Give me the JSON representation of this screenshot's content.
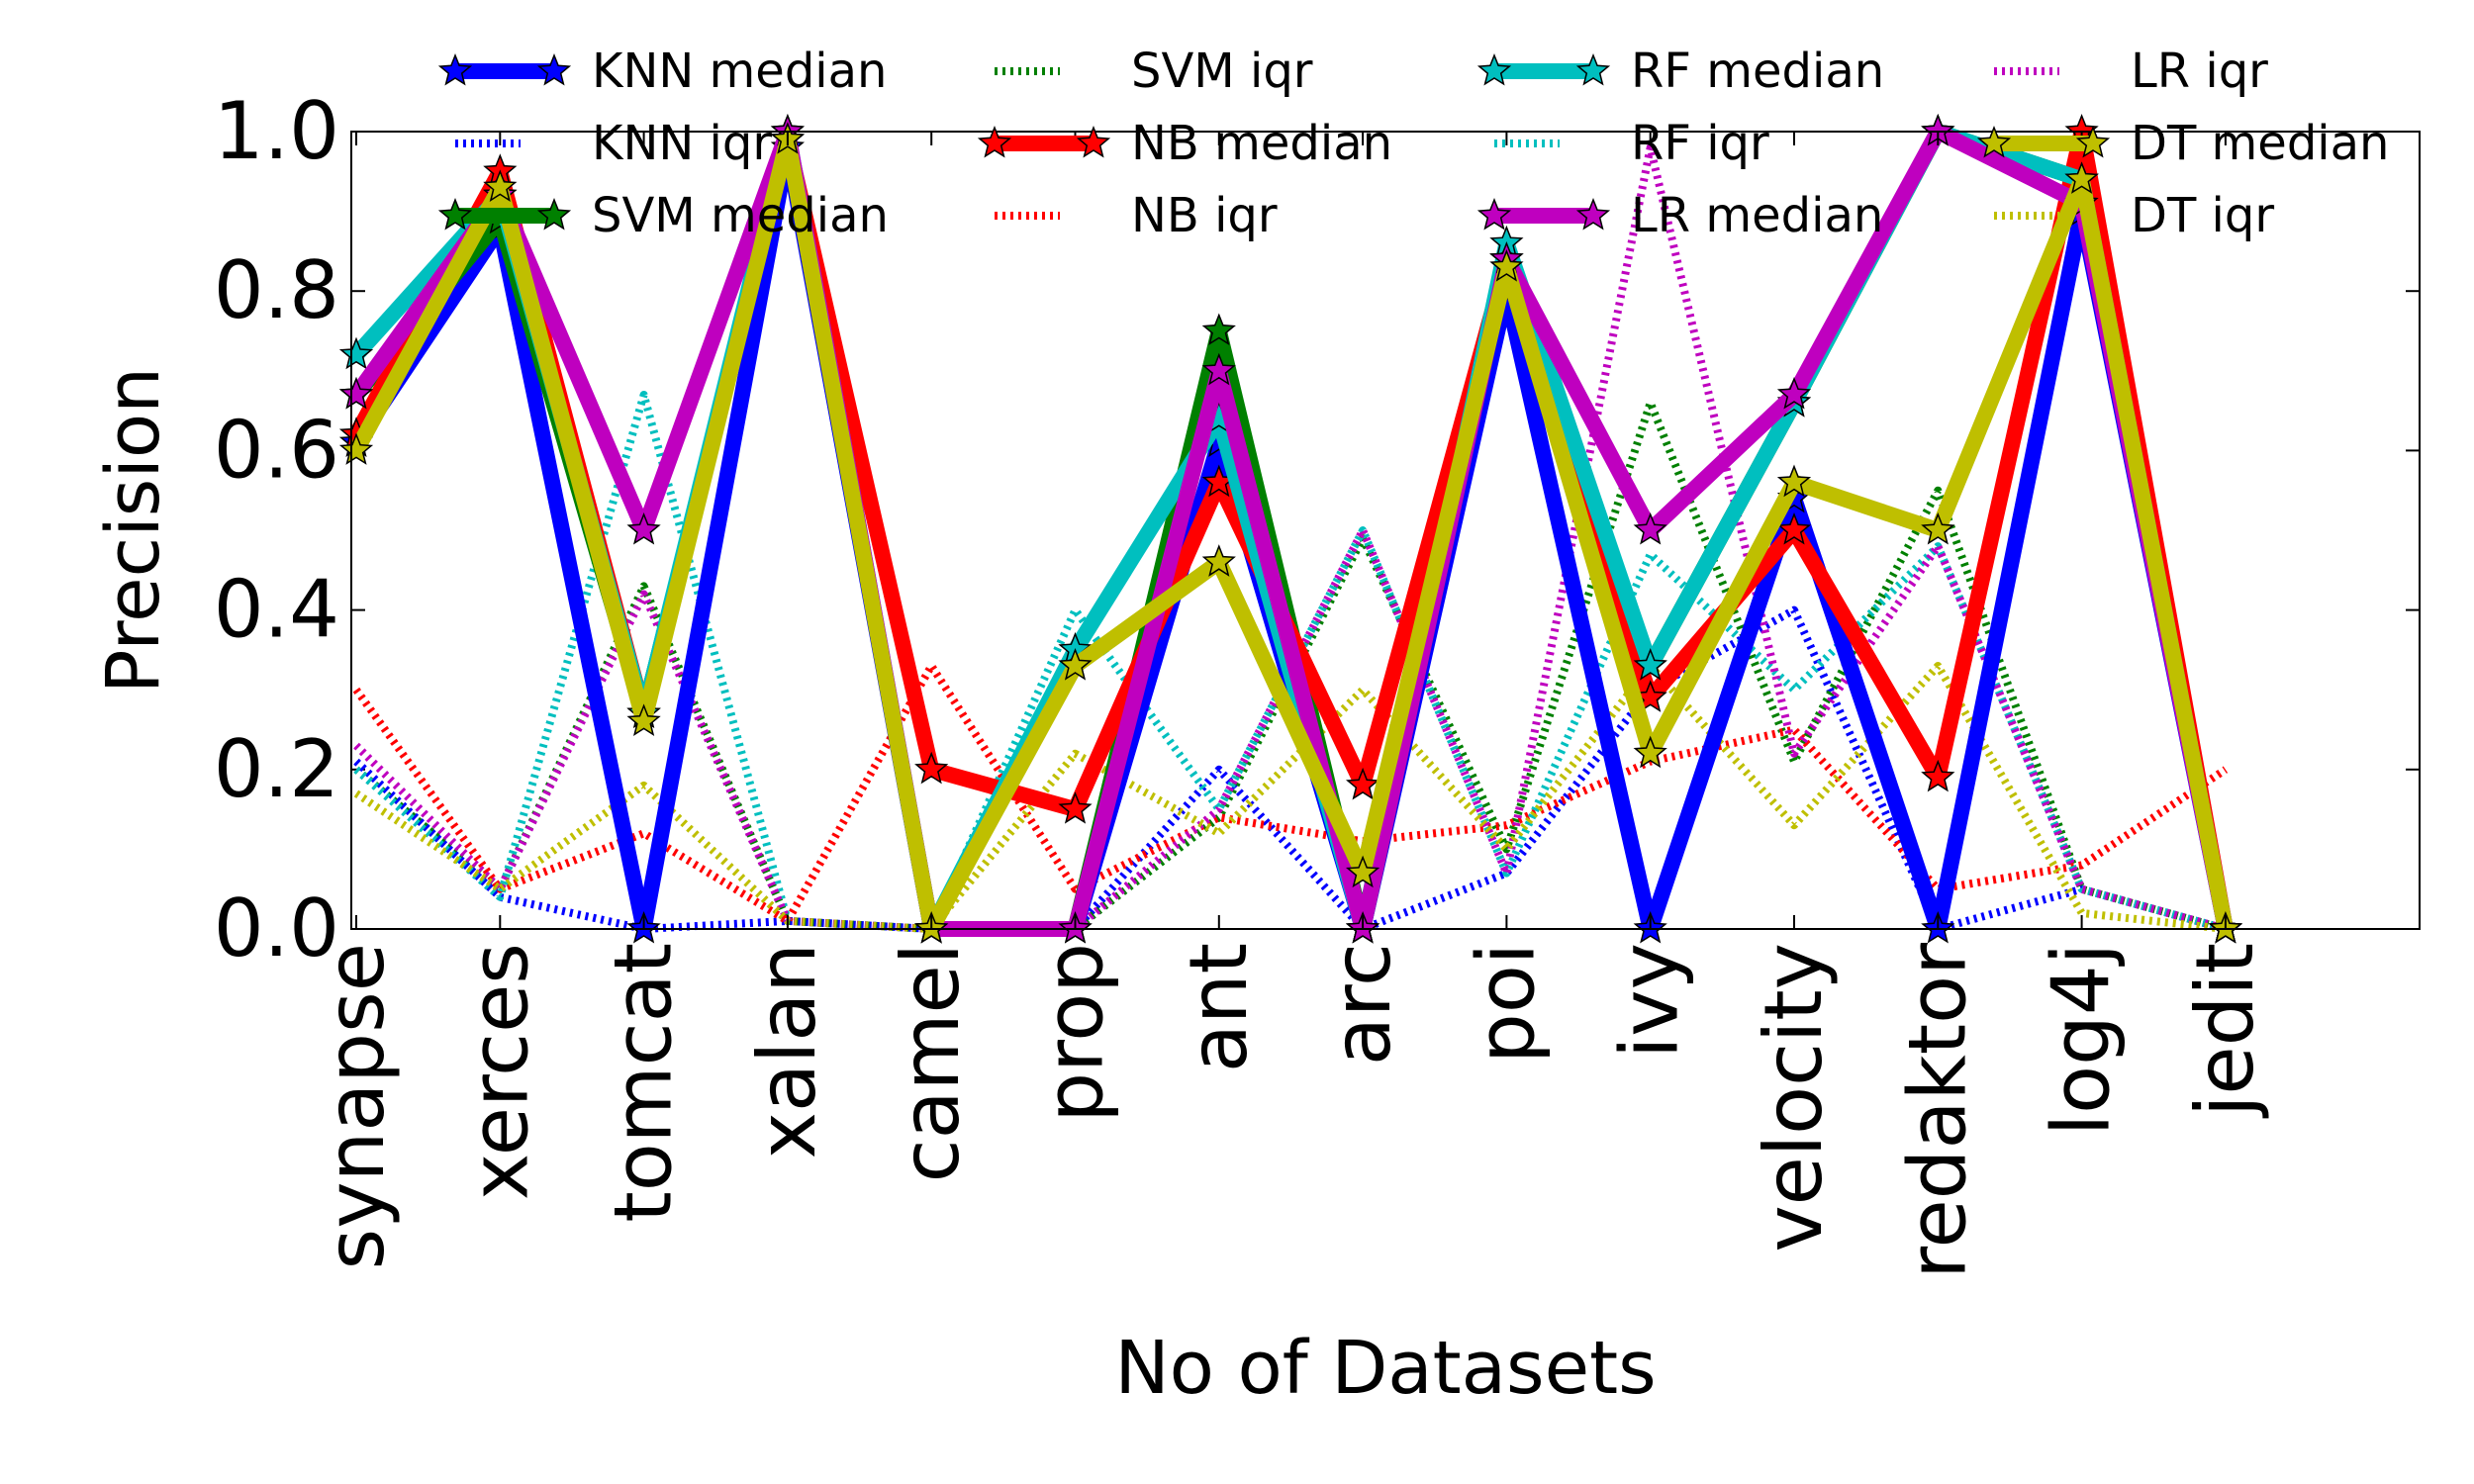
{
  "chart_data": {
    "type": "line",
    "title": "",
    "xlabel": "No of Datasets",
    "ylabel": "Precision",
    "categories": [
      "synapse",
      "xerces",
      "tomcat",
      "xalan",
      "camel",
      "prop",
      "ant",
      "arc",
      "poi",
      "ivy",
      "velocity",
      "redaktor",
      "log4j",
      "jedit"
    ],
    "ylim": [
      0,
      1
    ],
    "yticks": [
      "0.0",
      "0.2",
      "0.4",
      "0.6",
      "0.8",
      "1.0"
    ],
    "legend_position": "top",
    "legend_columns": 4,
    "series": [
      {
        "name": "KNN median",
        "color": "#0000ff",
        "style": "median",
        "values": [
          0.61,
          0.88,
          0.0,
          0.98,
          0.0,
          0.0,
          0.61,
          0.0,
          0.8,
          0.0,
          0.54,
          0.0,
          0.9,
          0.0
        ]
      },
      {
        "name": "KNN iqr",
        "color": "#0000ff",
        "style": "iqr",
        "values": [
          0.21,
          0.04,
          0.0,
          0.01,
          0.0,
          0.0,
          0.2,
          0.0,
          0.07,
          0.3,
          0.4,
          0.0,
          0.05,
          0.0
        ]
      },
      {
        "name": "SVM median",
        "color": "#008000",
        "style": "median",
        "values": [
          0.67,
          0.89,
          0.27,
          0.99,
          0.0,
          0.0,
          0.75,
          0.0,
          0.84,
          0.33,
          0.66,
          1.0,
          0.94,
          0.0
        ]
      },
      {
        "name": "SVM iqr",
        "color": "#008000",
        "style": "iqr",
        "values": [
          0.2,
          0.05,
          0.43,
          0.01,
          0.0,
          0.0,
          0.14,
          0.49,
          0.1,
          0.66,
          0.21,
          0.55,
          0.05,
          0.0
        ]
      },
      {
        "name": "NB median",
        "color": "#ff0000",
        "style": "median",
        "values": [
          0.62,
          0.95,
          0.27,
          0.99,
          0.2,
          0.15,
          0.56,
          0.18,
          0.84,
          0.29,
          0.5,
          0.19,
          1.0,
          0.0
        ]
      },
      {
        "name": "NB iqr",
        "color": "#ff0000",
        "style": "iqr",
        "values": [
          0.3,
          0.05,
          0.12,
          0.01,
          0.33,
          0.05,
          0.14,
          0.11,
          0.13,
          0.21,
          0.25,
          0.05,
          0.08,
          0.2
        ]
      },
      {
        "name": "RF median",
        "color": "#00bfbf",
        "style": "median",
        "values": [
          0.72,
          0.92,
          0.27,
          1.0,
          0.0,
          0.35,
          0.64,
          0.0,
          0.86,
          0.33,
          0.66,
          1.0,
          0.94,
          0.0
        ]
      },
      {
        "name": "RF iqr",
        "color": "#00bfbf",
        "style": "iqr",
        "values": [
          0.2,
          0.04,
          0.67,
          0.01,
          0.0,
          0.4,
          0.15,
          0.5,
          0.07,
          0.47,
          0.3,
          0.48,
          0.05,
          0.0
        ]
      },
      {
        "name": "LR median",
        "color": "#bf00bf",
        "style": "median",
        "values": [
          0.67,
          0.92,
          0.5,
          1.0,
          0.0,
          0.0,
          0.7,
          0.0,
          0.84,
          0.5,
          0.67,
          1.0,
          0.91,
          0.0
        ]
      },
      {
        "name": "LR iqr",
        "color": "#bf00bf",
        "style": "iqr",
        "values": [
          0.23,
          0.05,
          0.42,
          0.01,
          0.0,
          0.0,
          0.15,
          0.5,
          0.07,
          0.98,
          0.22,
          0.48,
          0.05,
          0.0
        ]
      },
      {
        "name": "DT median",
        "color": "#bfbf00",
        "style": "median",
        "values": [
          0.6,
          0.93,
          0.26,
          0.99,
          0.0,
          0.33,
          0.46,
          0.07,
          0.83,
          0.22,
          0.56,
          0.5,
          0.94,
          0.0
        ]
      },
      {
        "name": "DT iqr",
        "color": "#bfbf00",
        "style": "iqr",
        "values": [
          0.17,
          0.05,
          0.18,
          0.01,
          0.0,
          0.22,
          0.12,
          0.3,
          0.1,
          0.33,
          0.13,
          0.33,
          0.02,
          0.0
        ]
      }
    ]
  }
}
